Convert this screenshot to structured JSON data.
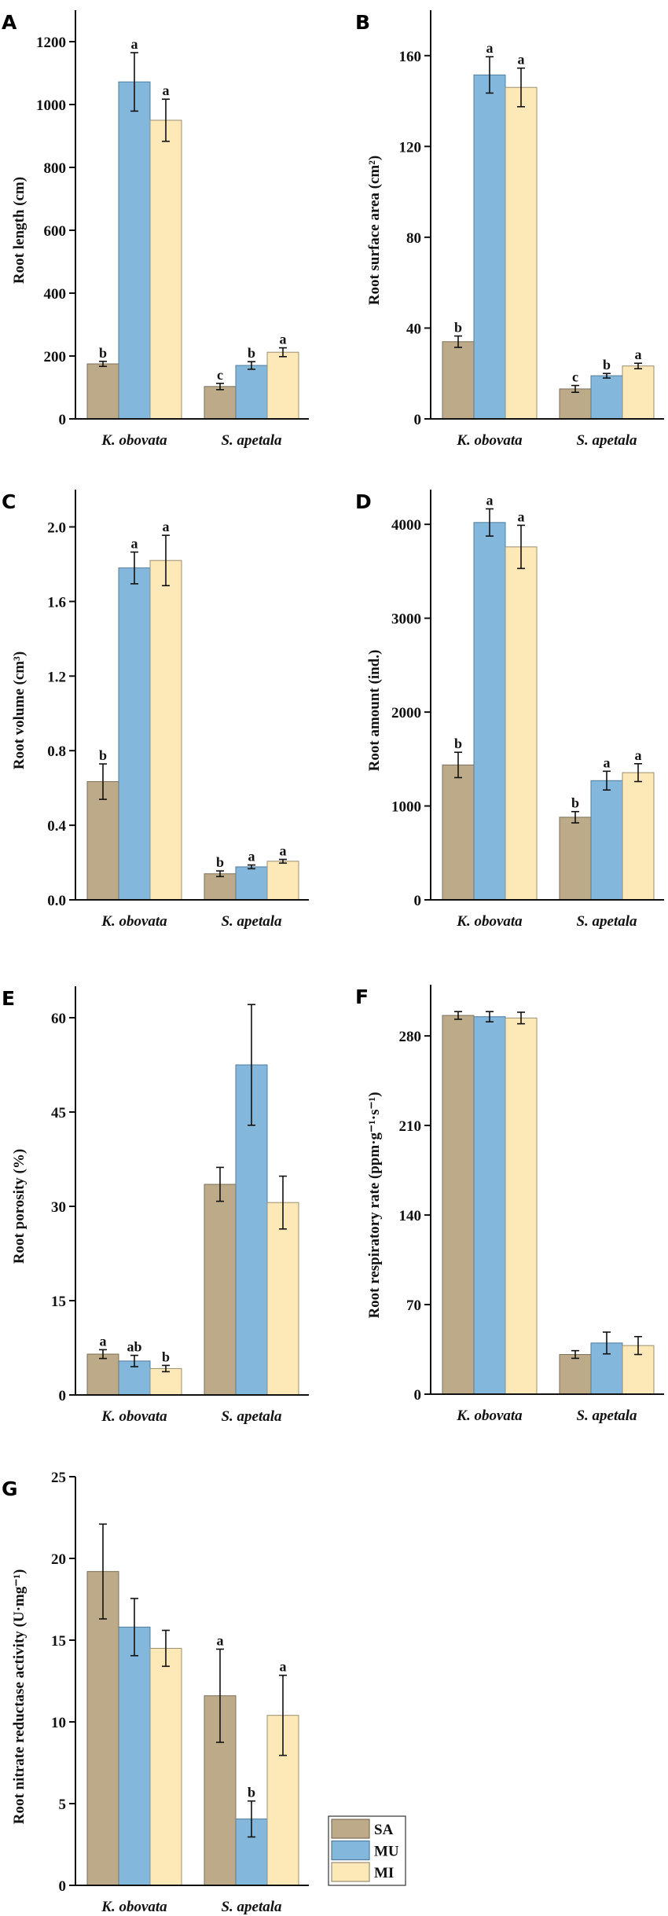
{
  "colors": {
    "SA": "#bcaa88",
    "MU": "#84b7dc",
    "MI": "#fde9b8"
  },
  "legend": {
    "entries": [
      "SA",
      "MU",
      "MI"
    ]
  },
  "chart_data": [
    {
      "panel": "A",
      "type": "bar",
      "ylabel": "Root length (cm)",
      "categories": [
        "K. obovata",
        "S. apetala"
      ],
      "ylim": [
        0,
        1300
      ],
      "yticks": [
        0,
        200,
        400,
        600,
        800,
        1000,
        1200
      ],
      "series": [
        {
          "name": "SA",
          "values": [
            175,
            103
          ],
          "errors": [
            8,
            10
          ],
          "letters": [
            "b",
            "c"
          ]
        },
        {
          "name": "MU",
          "values": [
            1072,
            170
          ],
          "errors": [
            93,
            12
          ],
          "letters": [
            "a",
            "b"
          ]
        },
        {
          "name": "MI",
          "values": [
            950,
            212
          ],
          "errors": [
            67,
            14
          ],
          "letters": [
            "a",
            "a"
          ]
        }
      ]
    },
    {
      "panel": "B",
      "type": "bar",
      "ylabel": "Root surface area (cm²)",
      "categories": [
        "K. obovata",
        "S. apetala"
      ],
      "ylim": [
        0,
        180
      ],
      "yticks": [
        0,
        40,
        80,
        120,
        160
      ],
      "series": [
        {
          "name": "SA",
          "values": [
            34,
            13.2
          ],
          "errors": [
            2.5,
            1.5
          ],
          "letters": [
            "b",
            "c"
          ]
        },
        {
          "name": "MU",
          "values": [
            151.5,
            19
          ],
          "errors": [
            8,
            1
          ],
          "letters": [
            "a",
            "b"
          ]
        },
        {
          "name": "MI",
          "values": [
            146,
            23.3
          ],
          "errors": [
            8.5,
            1.2
          ],
          "letters": [
            "a",
            "a"
          ]
        }
      ]
    },
    {
      "panel": "C",
      "type": "bar",
      "ylabel": "Root volume (cm³)",
      "categories": [
        "K. obovata",
        "S. apetala"
      ],
      "ylim": [
        0,
        2.2
      ],
      "yticks": [
        "0.0",
        "0.4",
        "0.8",
        "1.2",
        "1.6",
        "2.0"
      ],
      "series": [
        {
          "name": "SA",
          "values": [
            0.634,
            0.14
          ],
          "errors": [
            0.095,
            0.015
          ],
          "letters": [
            "b",
            "b"
          ]
        },
        {
          "name": "MU",
          "values": [
            1.78,
            0.177
          ],
          "errors": [
            0.085,
            0.01
          ],
          "letters": [
            "a",
            "a"
          ]
        },
        {
          "name": "MI",
          "values": [
            1.82,
            0.207
          ],
          "errors": [
            0.135,
            0.01
          ],
          "letters": [
            "a",
            "a"
          ]
        }
      ]
    },
    {
      "panel": "D",
      "type": "bar",
      "ylabel": "Root amount (ind.)",
      "categories": [
        "K. obovata",
        "S. apetala"
      ],
      "ylim": [
        0,
        4370
      ],
      "yticks": [
        0,
        1000,
        2000,
        3000,
        4000
      ],
      "series": [
        {
          "name": "SA",
          "values": [
            1437,
            880
          ],
          "errors": [
            135,
            60
          ],
          "letters": [
            "b",
            "b"
          ]
        },
        {
          "name": "MU",
          "values": [
            4020,
            1270
          ],
          "errors": [
            145,
            100
          ],
          "letters": [
            "a",
            "a"
          ]
        },
        {
          "name": "MI",
          "values": [
            3760,
            1355
          ],
          "errors": [
            230,
            95
          ],
          "letters": [
            "a",
            "a"
          ]
        }
      ]
    },
    {
      "panel": "E",
      "type": "bar",
      "ylabel": "Root porosity (%)",
      "categories": [
        "K. obovata",
        "S. apetala"
      ],
      "ylim": [
        0,
        65
      ],
      "yticks": [
        0,
        15,
        30,
        45,
        60
      ],
      "series": [
        {
          "name": "SA",
          "values": [
            6.5,
            33.5
          ],
          "errors": [
            0.7,
            2.7
          ],
          "letters": [
            "a",
            ""
          ]
        },
        {
          "name": "MU",
          "values": [
            5.4,
            52.5
          ],
          "errors": [
            0.9,
            9.6
          ],
          "letters": [
            "ab",
            ""
          ]
        },
        {
          "name": "MI",
          "values": [
            4.2,
            30.6
          ],
          "errors": [
            0.5,
            4.2
          ],
          "letters": [
            "b",
            ""
          ]
        }
      ]
    },
    {
      "panel": "F",
      "type": "bar",
      "ylabel": "Root respiratory rate (ppm·g⁻¹·s⁻¹)",
      "categories": [
        "K. obovata",
        "S. apetala"
      ],
      "ylim": [
        0,
        320
      ],
      "yticks": [
        0,
        70,
        140,
        210,
        280
      ],
      "series": [
        {
          "name": "SA",
          "values": [
            296,
            31
          ],
          "errors": [
            3,
            3
          ],
          "letters": [
            "",
            ""
          ]
        },
        {
          "name": "MU",
          "values": [
            295,
            40
          ],
          "errors": [
            4,
            8.5
          ],
          "letters": [
            "",
            ""
          ]
        },
        {
          "name": "MI",
          "values": [
            294,
            38
          ],
          "errors": [
            4.5,
            7
          ],
          "letters": [
            "",
            ""
          ]
        }
      ]
    },
    {
      "panel": "G",
      "type": "bar",
      "ylabel": "Root nitrate reductase activity (U·mg⁻¹)",
      "categories": [
        "K. obovata",
        "S. apetala"
      ],
      "ylim": [
        0,
        25
      ],
      "yticks": [
        0,
        5,
        10,
        15,
        20,
        25
      ],
      "series": [
        {
          "name": "SA",
          "values": [
            19.2,
            11.6
          ],
          "errors": [
            2.9,
            2.85
          ],
          "letters": [
            "",
            "a"
          ]
        },
        {
          "name": "MU",
          "values": [
            15.8,
            4.06
          ],
          "errors": [
            1.75,
            1.1
          ],
          "letters": [
            "",
            "b"
          ]
        },
        {
          "name": "MI",
          "values": [
            14.5,
            10.4
          ],
          "errors": [
            1.1,
            2.45
          ],
          "letters": [
            "",
            "a"
          ]
        }
      ]
    }
  ]
}
